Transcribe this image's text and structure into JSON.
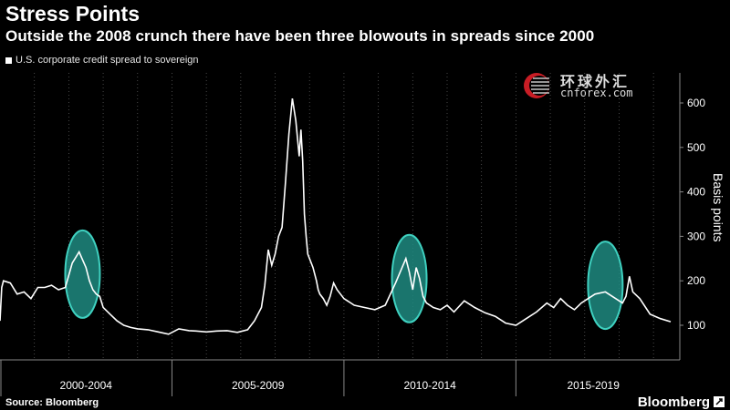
{
  "header": {
    "title": "Stress Points",
    "subtitle": "Outside the 2008 crunch there have been three blowouts in spreads since 2000"
  },
  "footer": {
    "source": "Source: Bloomberg",
    "brand": "Bloomberg"
  },
  "watermark": {
    "cn": "环球外汇",
    "en": "cnforex.com"
  },
  "colors": {
    "background": "#000000",
    "line": "#ffffff",
    "highlight": "#3fd1c0",
    "highlight_fill": "#1f8a80"
  },
  "chart_data": {
    "type": "line",
    "title": "",
    "xlabel": "",
    "ylabel": "Basis points",
    "ylim": [
      50,
      660
    ],
    "xlim": [
      2000.0,
      2019.5
    ],
    "yticks": [
      100,
      200,
      300,
      400,
      500,
      600
    ],
    "x_period_labels": [
      "2000-2004",
      "2005-2009",
      "2010-2014",
      "2015-2019"
    ],
    "grid": "vertical dotted",
    "legend_position": "top-left",
    "series": [
      {
        "name": "U.S. corporate credit spread to sovereign",
        "x": [
          2000.0,
          2000.05,
          2000.1,
          2000.3,
          2000.5,
          2000.7,
          2000.9,
          2001.1,
          2001.3,
          2001.5,
          2001.7,
          2001.9,
          2002.1,
          2002.3,
          2002.5,
          2002.6,
          2002.7,
          2002.8,
          2002.9,
          2003.0,
          2003.2,
          2003.4,
          2003.6,
          2003.8,
          2004.0,
          2004.3,
          2004.6,
          2004.9,
          2005.2,
          2005.5,
          2005.7,
          2006.0,
          2006.3,
          2006.6,
          2006.9,
          2007.2,
          2007.4,
          2007.6,
          2007.7,
          2007.8,
          2007.9,
          2008.0,
          2008.1,
          2008.2,
          2008.3,
          2008.4,
          2008.5,
          2008.6,
          2008.7,
          2008.75,
          2008.8,
          2008.85,
          2008.9,
          2008.95,
          2009.0,
          2009.1,
          2009.2,
          2009.25,
          2009.3,
          2009.4,
          2009.5,
          2009.6,
          2009.7,
          2009.8,
          2010.0,
          2010.3,
          2010.6,
          2010.9,
          2011.2,
          2011.5,
          2011.8,
          2011.9,
          2012.0,
          2012.1,
          2012.2,
          2012.3,
          2012.4,
          2012.6,
          2012.8,
          2013.0,
          2013.2,
          2013.5,
          2013.8,
          2014.1,
          2014.4,
          2014.7,
          2015.0,
          2015.3,
          2015.6,
          2015.9,
          2016.1,
          2016.3,
          2016.5,
          2016.7,
          2016.9,
          2017.1,
          2017.3,
          2017.6,
          2017.9,
          2018.1,
          2018.2,
          2018.3,
          2018.4,
          2018.6,
          2018.9,
          2019.2,
          2019.5
        ],
        "values": [
          110,
          185,
          200,
          195,
          170,
          175,
          160,
          185,
          185,
          190,
          180,
          185,
          240,
          265,
          230,
          200,
          180,
          170,
          165,
          140,
          125,
          110,
          100,
          95,
          92,
          90,
          85,
          80,
          92,
          88,
          87,
          85,
          87,
          88,
          84,
          90,
          110,
          140,
          190,
          270,
          235,
          260,
          300,
          320,
          420,
          530,
          610,
          560,
          480,
          540,
          470,
          350,
          300,
          260,
          250,
          230,
          200,
          180,
          170,
          160,
          145,
          165,
          195,
          180,
          160,
          145,
          140,
          135,
          145,
          195,
          250,
          220,
          180,
          230,
          205,
          165,
          150,
          140,
          135,
          145,
          130,
          155,
          140,
          128,
          120,
          105,
          100,
          115,
          130,
          150,
          140,
          160,
          145,
          135,
          150,
          160,
          170,
          175,
          160,
          150,
          165,
          210,
          175,
          160,
          125,
          115,
          108
        ]
      }
    ],
    "highlights": [
      {
        "center_x": 2002.4,
        "center_y": 215,
        "label": ""
      },
      {
        "center_x": 2011.9,
        "center_y": 205,
        "label": ""
      },
      {
        "center_x": 2017.6,
        "center_y": 190,
        "label": ""
      }
    ]
  }
}
